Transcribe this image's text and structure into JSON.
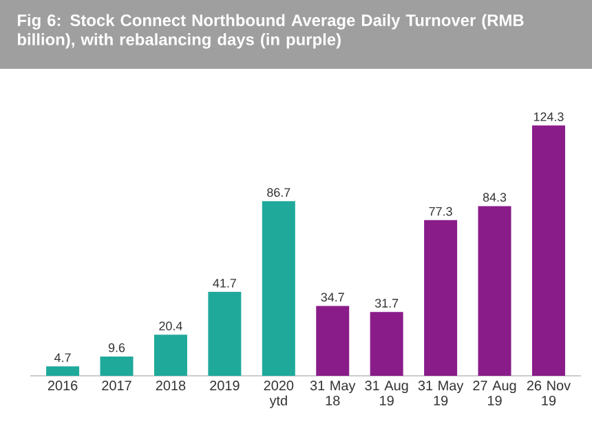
{
  "chart_data": {
    "type": "bar",
    "title": "Fig 6: Stock Connect Northbound Average Daily Turnover (RMB billion), with rebalancing days (in purple)",
    "categories": [
      "2016",
      "2017",
      "2018",
      "2019",
      "2020 ytd",
      "31 May 18",
      "31 Aug 19",
      "31 May 19",
      "27 Aug 19",
      "26 Nov 19"
    ],
    "values": [
      4.7,
      9.6,
      20.4,
      41.7,
      86.7,
      34.7,
      31.7,
      77.3,
      84.3,
      124.3
    ],
    "colors": [
      "#1fa99b",
      "#1fa99b",
      "#1fa99b",
      "#1fa99b",
      "#1fa99b",
      "#8a1c8a",
      "#8a1c8a",
      "#8a1c8a",
      "#8a1c8a",
      "#8a1c8a"
    ],
    "data_labels": true
  }
}
